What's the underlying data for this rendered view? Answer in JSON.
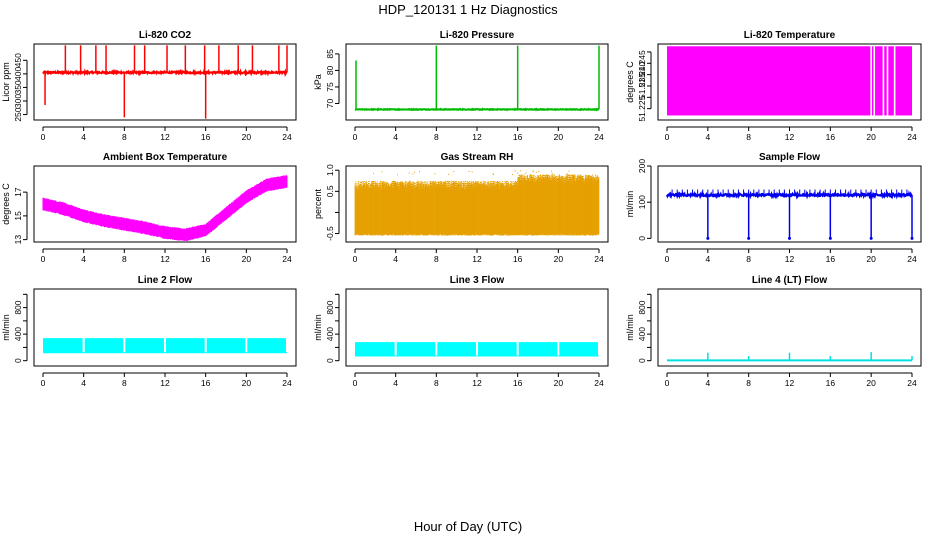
{
  "page_title": "HDP_120131  1 Hz Diagnostics",
  "xlabel": "Hour of Day (UTC)",
  "chart_data": [
    {
      "type": "line",
      "title": "Li-820 CO2",
      "ylabel": "Licor ppm",
      "color": "#ff0000",
      "xlim": [
        0,
        24
      ],
      "xticks": [
        0,
        4,
        8,
        12,
        16,
        20,
        24
      ],
      "ylim": [
        230,
        510
      ],
      "yticks": [
        250,
        300,
        350,
        400,
        450
      ],
      "yticklabels": [
        "250",
        "300",
        "350",
        "400",
        "450"
      ],
      "baseline": 405,
      "noise": 6,
      "spikes_up": [
        {
          "x": 2.2,
          "y": 505
        },
        {
          "x": 3.7,
          "y": 505
        },
        {
          "x": 5.2,
          "y": 505
        },
        {
          "x": 6.2,
          "y": 505
        },
        {
          "x": 9.0,
          "y": 505
        },
        {
          "x": 10.0,
          "y": 505
        },
        {
          "x": 12.2,
          "y": 505
        },
        {
          "x": 14.0,
          "y": 505
        },
        {
          "x": 15.9,
          "y": 505
        },
        {
          "x": 17.3,
          "y": 505
        },
        {
          "x": 19.2,
          "y": 505
        },
        {
          "x": 20.6,
          "y": 505
        },
        {
          "x": 23.2,
          "y": 505
        },
        {
          "x": 24.0,
          "y": 505
        }
      ],
      "spikes_down": [
        {
          "x": 0.2,
          "y": 285
        },
        {
          "x": 8.0,
          "y": 240
        },
        {
          "x": 16.0,
          "y": 235
        }
      ]
    },
    {
      "type": "line",
      "title": "Li-820 Pressure",
      "ylabel": "kPa",
      "color": "#00bb00",
      "xlim": [
        0,
        24
      ],
      "xticks": [
        0,
        4,
        8,
        12,
        16,
        20,
        24
      ],
      "ylim": [
        65,
        88
      ],
      "yticks": [
        70,
        75,
        80,
        85
      ],
      "yticklabels": [
        "70",
        "75",
        "80",
        "85"
      ],
      "baseline": 68.2,
      "noise": 0.2,
      "spikes_up": [
        {
          "x": 0.1,
          "y": 83
        },
        {
          "x": 8.0,
          "y": 87.5
        },
        {
          "x": 16.0,
          "y": 87.5
        },
        {
          "x": 24.0,
          "y": 87.5
        }
      ],
      "spikes_down": []
    },
    {
      "type": "line",
      "title": "Li-820 Temperature",
      "ylabel": "degrees C",
      "color": "#ff00ff",
      "xlim": [
        0,
        24
      ],
      "xticks": [
        0,
        4,
        8,
        12,
        16,
        20,
        24
      ],
      "ylim": [
        51.22,
        51.2535
      ],
      "yticks": [
        51.225,
        51.23,
        51.235,
        51.24,
        51.245,
        51.25
      ],
      "yticklabels": [
        "51.225",
        "",
        "51.235",
        "51.240",
        "51.245",
        ""
      ],
      "fill_range": [
        51.222,
        51.2525
      ],
      "gaps": [
        20.0,
        20.3,
        21.2,
        21.6,
        22.3
      ]
    },
    {
      "type": "line",
      "title": "Ambient Box Temperature",
      "ylabel": "degrees C",
      "color": "#ff00ff",
      "xlim": [
        0,
        24
      ],
      "xticks": [
        0,
        4,
        8,
        12,
        16,
        20,
        24
      ],
      "ylim": [
        12.8,
        19.2
      ],
      "yticks": [
        13,
        15,
        17
      ],
      "yticklabels": [
        "13",
        "15",
        "17"
      ],
      "center": [
        [
          0,
          16.0
        ],
        [
          2,
          15.6
        ],
        [
          4,
          15.0
        ],
        [
          6,
          14.6
        ],
        [
          8,
          14.3
        ],
        [
          10,
          14.0
        ],
        [
          12,
          13.6
        ],
        [
          14,
          13.4
        ],
        [
          16,
          13.8
        ],
        [
          18,
          15.2
        ],
        [
          20,
          16.6
        ],
        [
          22,
          17.6
        ],
        [
          24,
          17.9
        ]
      ],
      "band": 0.55
    },
    {
      "type": "scatter",
      "title": "Gas Stream RH",
      "ylabel": "percent",
      "color": "#e6a000",
      "xlim": [
        0,
        24
      ],
      "xticks": [
        0,
        4,
        8,
        12,
        16,
        20,
        24
      ],
      "ylim": [
        -0.7,
        1.1
      ],
      "yticks": [
        -0.5,
        0,
        0.5,
        1.0
      ],
      "yticklabels": [
        "-0.5",
        "",
        "0.5",
        "1.0"
      ],
      "range_low": -0.55,
      "range_high": 0.75,
      "high_after_16": 0.9
    },
    {
      "type": "line",
      "title": "Sample Flow",
      "ylabel": "ml/min",
      "color": "#0000ee",
      "xlim": [
        0,
        24
      ],
      "xticks": [
        0,
        4,
        8,
        12,
        16,
        20,
        24
      ],
      "ylim": [
        -10,
        200
      ],
      "yticks": [
        0,
        100,
        200
      ],
      "yticklabels": [
        "0",
        "100",
        "200"
      ],
      "baseline": 120,
      "noise": 6,
      "spikes_up_every_hour": 135,
      "drops": [
        4.0,
        8.0,
        12.0,
        16.0,
        20.0,
        24.0
      ],
      "drop_value": 0
    },
    {
      "type": "area",
      "title": "Line 2 Flow",
      "ylabel": "ml/min",
      "color": "#00ffff",
      "xlim": [
        0,
        24
      ],
      "xticks": [
        0,
        4,
        8,
        12,
        16,
        20,
        24
      ],
      "ylim": [
        -80,
        1080
      ],
      "yticks": [
        0,
        200,
        400,
        600,
        800,
        1000
      ],
      "yticklabels": [
        "0",
        "",
        "400",
        "",
        "800",
        ""
      ],
      "low": 120,
      "high": 340,
      "gaps": [
        4.0,
        8.0,
        12.0,
        16.0,
        20.0,
        24.0
      ]
    },
    {
      "type": "area",
      "title": "Line 3 Flow",
      "ylabel": "ml/min",
      "color": "#00ffff",
      "xlim": [
        0,
        24
      ],
      "xticks": [
        0,
        4,
        8,
        12,
        16,
        20,
        24
      ],
      "ylim": [
        -80,
        1080
      ],
      "yticks": [
        0,
        200,
        400,
        600,
        800,
        1000
      ],
      "yticklabels": [
        "0",
        "",
        "400",
        "",
        "800",
        ""
      ],
      "low": 70,
      "high": 280,
      "gaps": [
        4.0,
        8.0,
        12.0,
        16.0,
        20.0,
        24.0
      ]
    },
    {
      "type": "line",
      "title": "Line 4 (LT) Flow",
      "ylabel": "ml/min",
      "color": "#00e0e0",
      "xlim": [
        0,
        24
      ],
      "xticks": [
        0,
        4,
        8,
        12,
        16,
        20,
        24
      ],
      "ylim": [
        -80,
        1080
      ],
      "yticks": [
        0,
        200,
        400,
        600,
        800,
        1000
      ],
      "yticklabels": [
        "0",
        "",
        "400",
        "",
        "800",
        ""
      ],
      "baseline": 5,
      "spikes_up": [
        {
          "x": 4.0,
          "y": 120
        },
        {
          "x": 8.0,
          "y": 70
        },
        {
          "x": 12.0,
          "y": 120
        },
        {
          "x": 16.0,
          "y": 70
        },
        {
          "x": 20.0,
          "y": 130
        },
        {
          "x": 24.0,
          "y": 70
        }
      ]
    }
  ]
}
